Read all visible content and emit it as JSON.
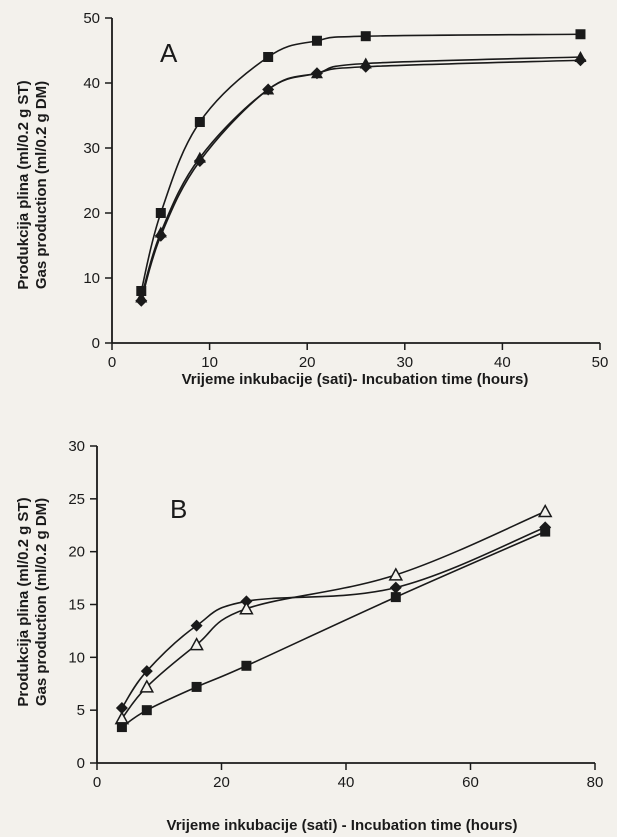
{
  "chart_data": [
    {
      "type": "line",
      "panel_label": "A",
      "xlabel": "Vrijeme inkubacije (sati)- Incubation time (hours)",
      "ylabel_line1": "Produkcija plina (ml/0.2 g ST)",
      "ylabel_line2": "Gas production (ml/0.2 g DM)",
      "xlim": [
        0,
        50
      ],
      "ylim": [
        0,
        50
      ],
      "xticks": [
        0,
        10,
        20,
        30,
        40,
        50
      ],
      "yticks": [
        0,
        10,
        20,
        30,
        40,
        50
      ],
      "series": [
        {
          "marker": "square",
          "x": [
            3,
            5,
            9,
            16,
            21,
            26,
            48
          ],
          "y": [
            8,
            20,
            34,
            44,
            46.5,
            47.2,
            47.5
          ]
        },
        {
          "marker": "triangle-filled",
          "x": [
            3,
            5,
            9,
            16,
            21,
            26,
            48
          ],
          "y": [
            7,
            17,
            28.5,
            39,
            41.5,
            43,
            44
          ]
        },
        {
          "marker": "diamond",
          "x": [
            3,
            5,
            9,
            16,
            21,
            26,
            48
          ],
          "y": [
            6.5,
            16.5,
            28,
            39,
            41.5,
            42.5,
            43.5
          ]
        }
      ]
    },
    {
      "type": "line",
      "panel_label": "B",
      "xlabel": "Vrijeme inkubacije (sati) - Incubation time (hours)",
      "ylabel_line1": "Produkcija plina (ml/0.2 g ST)",
      "ylabel_line2": "Gas production (ml/0.2 g DM)",
      "xlim": [
        0,
        80
      ],
      "ylim": [
        0,
        30
      ],
      "xticks": [
        0,
        20,
        40,
        60,
        80
      ],
      "yticks": [
        0,
        5,
        10,
        15,
        20,
        25,
        30
      ],
      "series": [
        {
          "marker": "diamond",
          "x": [
            4,
            8,
            16,
            24,
            48,
            72
          ],
          "y": [
            5.2,
            8.7,
            13,
            15.3,
            16.6,
            22.3
          ]
        },
        {
          "marker": "triangle-open",
          "x": [
            4,
            8,
            16,
            24,
            48,
            72
          ],
          "y": [
            4.2,
            7.2,
            11.2,
            14.6,
            17.8,
            23.8
          ]
        },
        {
          "marker": "square",
          "x": [
            4,
            8,
            16,
            24,
            48,
            72
          ],
          "y": [
            3.4,
            5,
            7.2,
            9.2,
            15.7,
            21.9
          ]
        }
      ]
    }
  ]
}
